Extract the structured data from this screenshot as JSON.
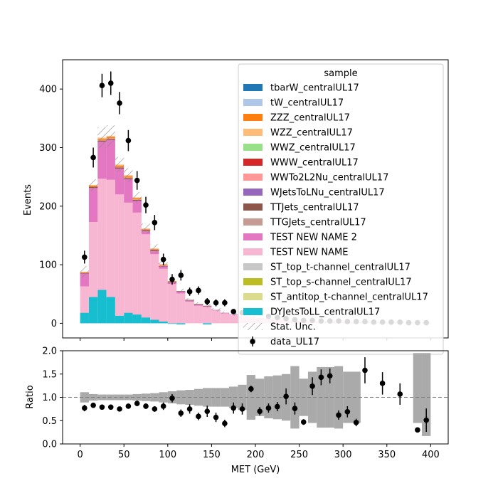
{
  "chart_data": [
    {
      "panel": "main",
      "type": "bar",
      "subtype": "stacked-histogram",
      "ylabel": "Events",
      "xlim": [
        -20,
        420
      ],
      "ylim": [
        -25,
        450
      ],
      "yticks": [
        0,
        100,
        200,
        300,
        400
      ],
      "bin_edges": [
        0,
        10,
        20,
        30,
        40,
        50,
        60,
        70,
        80,
        90,
        100,
        110,
        120,
        130,
        140,
        150,
        160,
        170,
        180,
        190,
        200,
        210,
        220,
        230,
        240,
        250,
        260,
        270,
        280,
        290,
        300,
        310,
        320,
        330,
        340,
        350,
        360,
        370,
        380,
        390,
        400
      ],
      "legend": {
        "title": "sample",
        "position": "upper right",
        "entries": [
          {
            "label": "tbarW_centralUL17",
            "color": "#1f77b4",
            "kind": "patch"
          },
          {
            "label": "tW_centralUL17",
            "color": "#aec7e8",
            "kind": "patch"
          },
          {
            "label": "ZZZ_centralUL17",
            "color": "#ff7f0e",
            "kind": "patch"
          },
          {
            "label": "WZZ_centralUL17",
            "color": "#ffbb78",
            "kind": "patch"
          },
          {
            "label": "WWZ_centralUL17",
            "color": "#98df8a",
            "kind": "patch"
          },
          {
            "label": "WWW_centralUL17",
            "color": "#d62728",
            "kind": "patch"
          },
          {
            "label": "WWTo2L2Nu_centralUL17",
            "color": "#ff9896",
            "kind": "patch"
          },
          {
            "label": "WJetsToLNu_centralUL17",
            "color": "#9467bd",
            "kind": "patch"
          },
          {
            "label": "TTJets_centralUL17",
            "color": "#8c564b",
            "kind": "patch"
          },
          {
            "label": "TTGJets_centralUL17",
            "color": "#c49c94",
            "kind": "patch"
          },
          {
            "label": "TEST NEW NAME 2",
            "color": "#e377c2",
            "kind": "patch"
          },
          {
            "label": "TEST NEW NAME",
            "color": "#f7b6d2",
            "kind": "patch"
          },
          {
            "label": "ST_top_t-channel_centralUL17",
            "color": "#c7c7c7",
            "kind": "patch"
          },
          {
            "label": "ST_top_s-channel_centralUL17",
            "color": "#bcbd22",
            "kind": "patch"
          },
          {
            "label": "ST_antitop_t-channel_centralUL17",
            "color": "#dbdb8d",
            "kind": "patch"
          },
          {
            "label": "DYJetsToLL_centralUL17",
            "color": "#17becf",
            "kind": "patch"
          },
          {
            "label": "Stat. Unc.",
            "color": "#888888",
            "kind": "hatch"
          },
          {
            "label": "data_UL17",
            "color": "#000000",
            "kind": "errorbar"
          }
        ]
      },
      "series": [
        {
          "name": "DYJetsToLL_centralUL17",
          "color": "#17becf",
          "values": [
            18,
            45,
            57,
            45,
            13,
            18,
            15,
            10,
            6,
            3,
            -1,
            -2,
            0,
            0,
            -2,
            0,
            0,
            0,
            0,
            0,
            0,
            0,
            0,
            0,
            0,
            0,
            0,
            0,
            0,
            0,
            0,
            0,
            0,
            0,
            0,
            0,
            0,
            0,
            0,
            0
          ]
        },
        {
          "name": "ST_top_t-channel_centralUL17",
          "color": "#c7c7c7",
          "values": [
            0,
            0,
            0,
            0,
            0,
            0,
            0,
            0,
            0,
            0,
            0,
            0,
            0,
            0,
            0,
            0,
            0,
            0,
            0,
            0,
            0,
            0,
            0,
            0,
            0,
            0,
            0,
            0,
            0,
            0,
            0,
            0,
            0,
            0,
            0,
            0,
            0,
            0,
            0,
            0
          ]
        },
        {
          "name": "TEST NEW NAME",
          "color": "#f7b6d2",
          "values": [
            45,
            128,
            190,
            200,
            207,
            188,
            174,
            142,
            112,
            90,
            67,
            51,
            37,
            30,
            28,
            22,
            17,
            14,
            12,
            11,
            9,
            8,
            7,
            6,
            5,
            4,
            4,
            3,
            3,
            3,
            2,
            2,
            2,
            2,
            2,
            2,
            1,
            1,
            1,
            1
          ]
        },
        {
          "name": "TEST NEW NAME 2",
          "color": "#e377c2",
          "values": [
            22,
            58,
            63,
            68,
            44,
            40,
            20,
            5,
            5,
            4,
            3,
            3,
            2,
            2,
            1,
            1,
            1,
            1,
            0,
            0,
            0,
            0,
            0,
            0,
            0,
            0,
            0,
            0,
            0,
            0,
            0,
            0,
            0,
            0,
            0,
            0,
            0,
            0,
            0,
            0
          ]
        },
        {
          "name": "TTJets_centralUL17",
          "color": "#8c564b",
          "values": [
            1,
            2,
            2,
            2,
            2,
            2,
            2,
            2,
            2,
            1,
            1,
            1,
            1,
            1,
            1,
            0,
            0,
            0,
            0,
            0,
            0,
            0,
            0,
            0,
            0,
            0,
            0,
            0,
            0,
            0,
            0,
            0,
            0,
            0,
            0,
            0,
            0,
            0,
            0,
            0
          ]
        },
        {
          "name": "WWTo2L2Nu_centralUL17",
          "color": "#ff9896",
          "values": [
            0,
            0,
            1,
            1,
            1,
            1,
            1,
            1,
            1,
            1,
            0,
            0,
            0,
            0,
            0,
            0,
            0,
            0,
            0,
            0,
            0,
            0,
            0,
            0,
            0,
            0,
            0,
            0,
            0,
            0,
            0,
            0,
            0,
            0,
            0,
            0,
            0,
            0,
            0,
            0
          ]
        },
        {
          "name": "ZZZ_centralUL17",
          "color": "#ff7f0e",
          "values": [
            1,
            2,
            2,
            2,
            2,
            2,
            2,
            1,
            1,
            1,
            1,
            0,
            0,
            0,
            0,
            0,
            0,
            0,
            0,
            0,
            0,
            0,
            0,
            0,
            0,
            0,
            0,
            0,
            0,
            0,
            0,
            0,
            0,
            0,
            0,
            0,
            0,
            0,
            0,
            0
          ]
        },
        {
          "name": "WZZ_centralUL17",
          "color": "#ffbb78",
          "values": [
            1,
            1,
            2,
            2,
            2,
            2,
            1,
            1,
            1,
            1,
            0,
            0,
            0,
            0,
            0,
            0,
            0,
            0,
            0,
            0,
            0,
            0,
            0,
            0,
            0,
            0,
            0,
            0,
            0,
            0,
            0,
            0,
            0,
            0,
            0,
            0,
            0,
            0,
            0,
            0
          ]
        }
      ],
      "stat_unc": [
        10,
        10,
        18,
        18,
        13,
        12,
        9,
        8,
        7,
        6,
        5,
        4,
        3,
        3,
        3,
        3,
        2,
        2,
        2,
        2,
        2,
        2,
        2,
        2,
        2,
        2,
        2,
        2,
        2,
        2,
        2,
        2,
        2,
        2,
        2,
        2,
        2,
        2,
        2,
        2
      ],
      "data": {
        "name": "data_UL17",
        "x": [
          5,
          15,
          25,
          35,
          45,
          55,
          65,
          75,
          85,
          95,
          105,
          115,
          125,
          135,
          145,
          155,
          165,
          175,
          185,
          195,
          205,
          215,
          225,
          235,
          245,
          255,
          265,
          275,
          285,
          295,
          305,
          315,
          325,
          335,
          345,
          355,
          365,
          375,
          385,
          395
        ],
        "y": [
          113,
          283,
          406,
          410,
          376,
          312,
          244,
          202,
          172,
          109,
          75,
          82,
          54,
          56,
          37,
          35,
          35,
          20,
          18,
          20,
          18,
          12,
          10,
          8,
          6,
          5,
          5,
          4,
          4,
          4,
          3,
          3,
          3,
          2,
          2,
          2,
          2,
          1,
          1,
          1
        ],
        "yerr": [
          11,
          17,
          20,
          20,
          19,
          18,
          16,
          14,
          13,
          10,
          9,
          9,
          7,
          7,
          6,
          6,
          6,
          4,
          4,
          4,
          4,
          3,
          3,
          3,
          2,
          2,
          2,
          2,
          2,
          2,
          2,
          2,
          2,
          1,
          1,
          1,
          1,
          1,
          1,
          1
        ]
      }
    },
    {
      "panel": "ratio",
      "type": "scatter",
      "xlabel": "MET (GeV)",
      "ylabel": "Ratio",
      "xlim": [
        -20,
        420
      ],
      "ylim": [
        0,
        2
      ],
      "xticks": [
        0,
        50,
        100,
        150,
        200,
        250,
        300,
        350,
        400
      ],
      "yticks": [
        0.0,
        0.5,
        1.0,
        1.5,
        2.0
      ],
      "ytick_labels": [
        "0.0",
        "0.5",
        "1.0",
        "1.5",
        "2.0"
      ],
      "reference_line": 1.0,
      "unc_band": {
        "color": "#aaaaaa",
        "bins": [
          {
            "lo": 0,
            "hi": 10,
            "down": 0.89,
            "up": 1.11
          },
          {
            "lo": 10,
            "hi": 20,
            "down": 0.93,
            "up": 1.07
          },
          {
            "lo": 20,
            "hi": 30,
            "down": 0.94,
            "up": 1.06
          },
          {
            "lo": 30,
            "hi": 40,
            "down": 0.94,
            "up": 1.06
          },
          {
            "lo": 40,
            "hi": 50,
            "down": 0.94,
            "up": 1.06
          },
          {
            "lo": 50,
            "hi": 60,
            "down": 0.94,
            "up": 1.06
          },
          {
            "lo": 60,
            "hi": 70,
            "down": 0.93,
            "up": 1.07
          },
          {
            "lo": 70,
            "hi": 80,
            "down": 0.92,
            "up": 1.08
          },
          {
            "lo": 80,
            "hi": 90,
            "down": 0.91,
            "up": 1.09
          },
          {
            "lo": 90,
            "hi": 100,
            "down": 0.89,
            "up": 1.11
          },
          {
            "lo": 100,
            "hi": 110,
            "down": 0.87,
            "up": 1.13
          },
          {
            "lo": 110,
            "hi": 120,
            "down": 0.85,
            "up": 1.15
          },
          {
            "lo": 120,
            "hi": 130,
            "down": 0.84,
            "up": 1.16
          },
          {
            "lo": 130,
            "hi": 140,
            "down": 0.82,
            "up": 1.18
          },
          {
            "lo": 140,
            "hi": 150,
            "down": 0.8,
            "up": 1.2
          },
          {
            "lo": 150,
            "hi": 160,
            "down": 0.8,
            "up": 1.2
          },
          {
            "lo": 160,
            "hi": 170,
            "down": 0.8,
            "up": 1.2
          },
          {
            "lo": 170,
            "hi": 180,
            "down": 0.77,
            "up": 1.23
          },
          {
            "lo": 180,
            "hi": 190,
            "down": 0.73,
            "up": 1.27
          },
          {
            "lo": 190,
            "hi": 200,
            "down": 0.52,
            "up": 1.48
          },
          {
            "lo": 200,
            "hi": 210,
            "down": 0.6,
            "up": 1.4
          },
          {
            "lo": 210,
            "hi": 220,
            "down": 0.55,
            "up": 1.45
          },
          {
            "lo": 220,
            "hi": 230,
            "down": 0.53,
            "up": 1.47
          },
          {
            "lo": 230,
            "hi": 240,
            "down": 0.5,
            "up": 1.5
          },
          {
            "lo": 240,
            "hi": 250,
            "down": 0.33,
            "up": 1.67
          },
          {
            "lo": 250,
            "hi": 260,
            "down": 0.6,
            "up": 1.4
          },
          {
            "lo": 260,
            "hi": 270,
            "down": 0.45,
            "up": 1.55
          },
          {
            "lo": 270,
            "hi": 280,
            "down": 0.35,
            "up": 1.65
          },
          {
            "lo": 280,
            "hi": 290,
            "down": 0.35,
            "up": 1.65
          },
          {
            "lo": 290,
            "hi": 300,
            "down": 0.33,
            "up": 1.67
          },
          {
            "lo": 300,
            "hi": 310,
            "down": 0.45,
            "up": 1.55
          },
          {
            "lo": 310,
            "hi": 320,
            "down": 0.45,
            "up": 1.55
          },
          {
            "lo": 380,
            "hi": 390,
            "down": 0.45,
            "up": 1.95
          },
          {
            "lo": 390,
            "hi": 400,
            "down": 0.17,
            "up": 1.95
          }
        ]
      },
      "points": {
        "color": "#000000",
        "x": [
          5,
          15,
          25,
          35,
          45,
          55,
          65,
          75,
          85,
          95,
          105,
          115,
          125,
          135,
          145,
          155,
          165,
          175,
          185,
          195,
          205,
          215,
          225,
          235,
          245,
          255,
          265,
          275,
          285,
          295,
          305,
          315,
          325,
          345,
          365,
          385,
          395
        ],
        "y": [
          0.77,
          0.83,
          0.79,
          0.79,
          0.75,
          0.81,
          0.87,
          0.81,
          0.75,
          0.81,
          0.98,
          0.66,
          0.75,
          0.59,
          0.7,
          0.57,
          0.44,
          0.77,
          0.75,
          1.18,
          0.7,
          0.77,
          0.8,
          1.02,
          0.76,
          0.47,
          1.24,
          1.43,
          1.46,
          0.62,
          0.69,
          0.46,
          1.58,
          1.3,
          1.07,
          0.3,
          0.51
        ],
        "yerr": [
          0.07,
          0.05,
          0.04,
          0.04,
          0.04,
          0.05,
          0.06,
          0.06,
          0.06,
          0.08,
          0.09,
          0.08,
          0.1,
          0.08,
          0.12,
          0.1,
          0.08,
          0.12,
          0.12,
          0.07,
          0.09,
          0.1,
          0.1,
          0.17,
          0.13,
          0.06,
          0.19,
          0.17,
          0.16,
          0.1,
          0.12,
          0.08,
          0.28,
          0.24,
          0.23,
          0.03,
          0.25
        ]
      }
    }
  ]
}
